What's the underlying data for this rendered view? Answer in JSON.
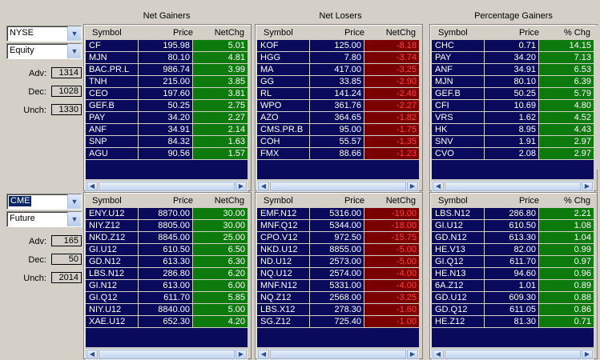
{
  "headers": [
    "Net Gainers",
    "Net Losers",
    "Percentage Gainers"
  ],
  "sections": [
    {
      "exchange": "NYSE",
      "exchange_selected": false,
      "instrument": "Equity",
      "adv_label": "Adv:",
      "adv": "1314",
      "dec_label": "Dec:",
      "dec": "1028",
      "unch_label": "Unch:",
      "unch": "1330",
      "panels": [
        {
          "cols": [
            "Symbol",
            "Price",
            "NetChg"
          ],
          "rows": [
            [
              "CF",
              "195.98",
              "5.01"
            ],
            [
              "MJN",
              "80.10",
              "4.81"
            ],
            [
              "BAC.PR.L",
              "986.74",
              "3.99"
            ],
            [
              "TNH",
              "215.00",
              "3.85"
            ],
            [
              "CEO",
              "197.60",
              "3.81"
            ],
            [
              "GEF.B",
              "50.25",
              "2.75"
            ],
            [
              "PAY",
              "34.20",
              "2.27"
            ],
            [
              "ANF",
              "34.91",
              "2.14"
            ],
            [
              "SNP",
              "84.32",
              "1.63"
            ],
            [
              "AGU",
              "90.56",
              "1.57"
            ]
          ],
          "tone": "pos"
        },
        {
          "cols": [
            "Symbol",
            "Price",
            "NetChg"
          ],
          "rows": [
            [
              "KOF",
              "125.00",
              "-8.18"
            ],
            [
              "HGG",
              "7.80",
              "-3.74"
            ],
            [
              "MA",
              "417.00",
              "-3.25"
            ],
            [
              "GG",
              "33.85",
              "-2.90"
            ],
            [
              "RL",
              "141.24",
              "-2.46"
            ],
            [
              "WPO",
              "361.76",
              "-2.27"
            ],
            [
              "AZO",
              "364.65",
              "-1.82"
            ],
            [
              "CMS.PR.B",
              "95.00",
              "-1.75"
            ],
            [
              "COH",
              "55.57",
              "-1.35"
            ],
            [
              "FMX",
              "88.66",
              "-1.23"
            ]
          ],
          "tone": "neg"
        },
        {
          "cols": [
            "Symbol",
            "Price",
            "% Chg"
          ],
          "rows": [
            [
              "CHC",
              "0.71",
              "14.15"
            ],
            [
              "PAY",
              "34.20",
              "7.13"
            ],
            [
              "ANF",
              "34.91",
              "6.53"
            ],
            [
              "MJN",
              "80.10",
              "6.39"
            ],
            [
              "GEF.B",
              "50.25",
              "5.79"
            ],
            [
              "CFI",
              "10.69",
              "4.80"
            ],
            [
              "VRS",
              "1.62",
              "4.52"
            ],
            [
              "HK",
              "8.95",
              "4.43"
            ],
            [
              "SNV",
              "1.91",
              "2.97"
            ],
            [
              "CVO",
              "2.08",
              "2.97"
            ]
          ],
          "tone": "pos"
        }
      ]
    },
    {
      "exchange": "CME",
      "exchange_selected": true,
      "instrument": "Future",
      "adv_label": "Adv:",
      "adv": "165",
      "dec_label": "Dec:",
      "dec": "50",
      "unch_label": "Unch:",
      "unch": "2014",
      "panels": [
        {
          "cols": [
            "Symbol",
            "Price",
            "NetChg"
          ],
          "rows": [
            [
              "ENY.U12",
              "8870.00",
              "30.00"
            ],
            [
              "NIY.Z12",
              "8805.00",
              "30.00"
            ],
            [
              "NKD.Z12",
              "8845.00",
              "25.00"
            ],
            [
              "GI.U12",
              "610.50",
              "6.50"
            ],
            [
              "GD.N12",
              "613.30",
              "6.30"
            ],
            [
              "LBS.N12",
              "286.80",
              "6.20"
            ],
            [
              "GI.N12",
              "613.00",
              "6.00"
            ],
            [
              "GI.Q12",
              "611.70",
              "5.85"
            ],
            [
              "NIY.U12",
              "8840.00",
              "5.00"
            ],
            [
              "XAE.U12",
              "652.30",
              "4.20"
            ]
          ],
          "tone": "pos"
        },
        {
          "cols": [
            "Symbol",
            "Price",
            "NetChg"
          ],
          "rows": [
            [
              "EMF.N12",
              "5316.00",
              "-19.00"
            ],
            [
              "MNF.Q12",
              "5344.00",
              "-18.00"
            ],
            [
              "CPO.V12",
              "972.50",
              "-15.75"
            ],
            [
              "NKD.U12",
              "8855.00",
              "-5.00"
            ],
            [
              "ND.U12",
              "2573.00",
              "-5.00"
            ],
            [
              "NQ.U12",
              "2574.00",
              "-4.00"
            ],
            [
              "MNF.N12",
              "5331.00",
              "-4.00"
            ],
            [
              "NQ.Z12",
              "2568.00",
              "-3.25"
            ],
            [
              "LBS.X12",
              "278.30",
              "-1.60"
            ],
            [
              "SG.Z12",
              "725.40",
              "-1.00"
            ]
          ],
          "tone": "neg"
        },
        {
          "cols": [
            "Symbol",
            "Price",
            "% Chg"
          ],
          "rows": [
            [
              "LBS.N12",
              "286.80",
              "2.21"
            ],
            [
              "GI.U12",
              "610.50",
              "1.08"
            ],
            [
              "GD.N12",
              "613.30",
              "1.04"
            ],
            [
              "HE.V13",
              "82.00",
              "0.99"
            ],
            [
              "GI.Q12",
              "611.70",
              "0.97"
            ],
            [
              "HE.N13",
              "94.60",
              "0.96"
            ],
            [
              "6A.Z12",
              "1.01",
              "0.89"
            ],
            [
              "GD.U12",
              "609.30",
              "0.88"
            ],
            [
              "GD.Q12",
              "611.05",
              "0.86"
            ],
            [
              "HE.Z12",
              "81.30",
              "0.71"
            ]
          ],
          "tone": "pos"
        }
      ]
    }
  ]
}
